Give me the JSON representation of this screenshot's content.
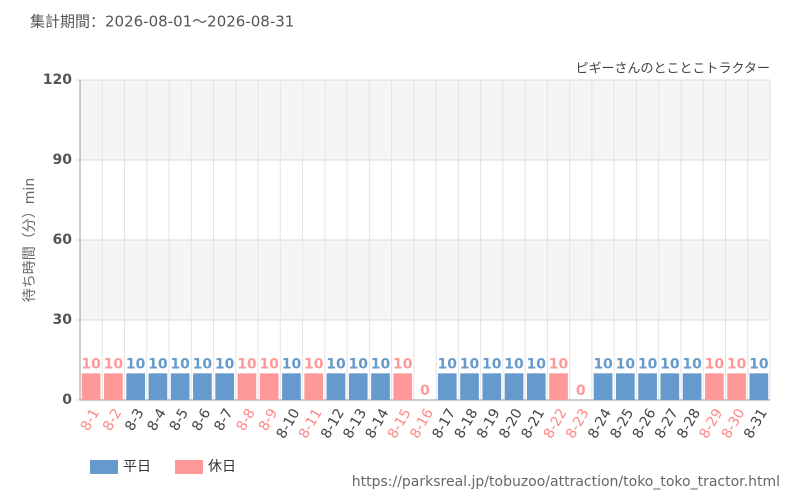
{
  "chart_data": {
    "type": "bar",
    "subtitle": "集計期間：2026-08-01～2026-08-31",
    "annotation": "ピギーさんのとことこトラクター",
    "y_label": "待ち時間（分）min",
    "source": "https://parksreal.jp/tobuzoo/attraction/toko_toko_tractor.html",
    "categories": [
      "8-1",
      "8-2",
      "8-3",
      "8-4",
      "8-5",
      "8-6",
      "8-7",
      "8-8",
      "8-9",
      "8-10",
      "8-11",
      "8-12",
      "8-13",
      "8-14",
      "8-15",
      "8-16",
      "8-17",
      "8-18",
      "8-19",
      "8-20",
      "8-21",
      "8-22",
      "8-23",
      "8-24",
      "8-25",
      "8-26",
      "8-27",
      "8-28",
      "8-29",
      "8-30",
      "8-31"
    ],
    "series": [
      {
        "name": "平日",
        "color": "#6699cc",
        "label_color": "#444444",
        "values": [
          null,
          null,
          10,
          10,
          10,
          10,
          10,
          null,
          null,
          10,
          null,
          10,
          10,
          10,
          null,
          null,
          10,
          10,
          10,
          10,
          10,
          null,
          null,
          10,
          10,
          10,
          10,
          10,
          null,
          null,
          10
        ]
      },
      {
        "name": "休日",
        "color": "#ff9999",
        "label_color": "#ff8888",
        "values": [
          10,
          10,
          null,
          null,
          null,
          null,
          null,
          10,
          10,
          null,
          10,
          null,
          null,
          null,
          10,
          0,
          null,
          null,
          null,
          null,
          null,
          10,
          0,
          null,
          null,
          null,
          null,
          null,
          10,
          10,
          null
        ]
      }
    ],
    "ylim": [
      0,
      120
    ],
    "yticks": [
      0,
      30,
      60,
      90,
      120
    ],
    "grid": true,
    "legend": "bottom-left"
  }
}
